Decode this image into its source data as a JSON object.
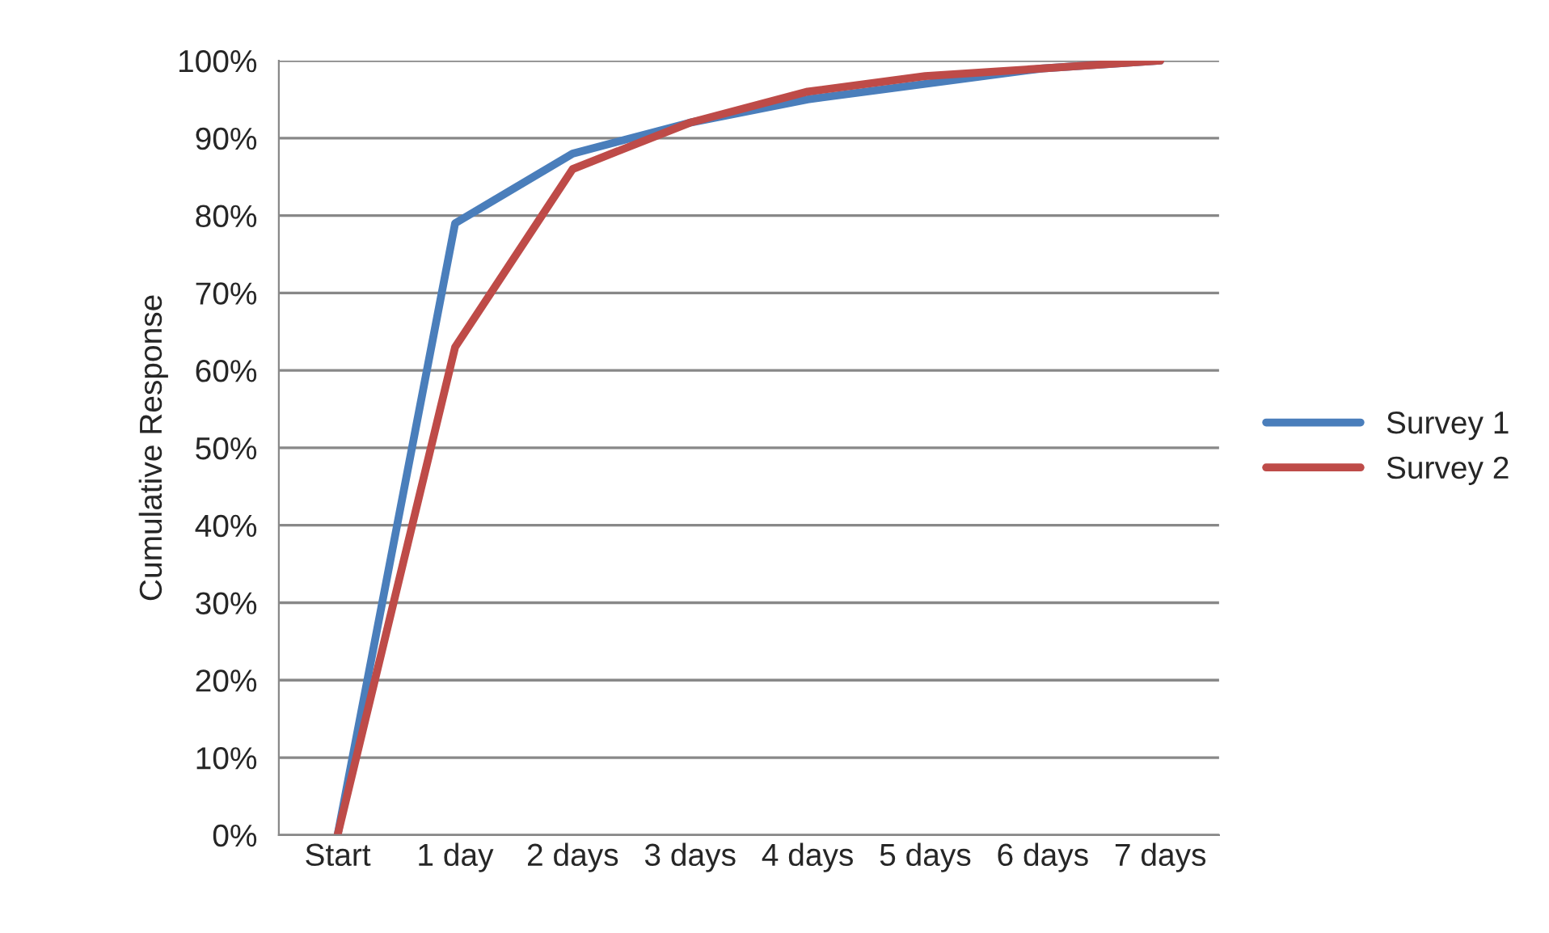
{
  "chart_data": {
    "type": "line",
    "ylabel": "Cumulative Response",
    "categories": [
      "Start",
      "1 day",
      "2 days",
      "3 days",
      "4 days",
      "5 days",
      "6 days",
      "7 days"
    ],
    "series": [
      {
        "name": "Survey 1",
        "color": "#4a7ebb",
        "values": [
          0,
          0.79,
          0.88,
          0.92,
          0.95,
          0.97,
          0.99,
          1.0
        ]
      },
      {
        "name": "Survey 2",
        "color": "#be4b48",
        "values": [
          0,
          0.63,
          0.86,
          0.92,
          0.96,
          0.98,
          0.99,
          1.0
        ]
      }
    ],
    "ylim": [
      0,
      1.0
    ],
    "yticks": [
      {
        "value": 0,
        "label": "0%"
      },
      {
        "value": 0.1,
        "label": "10%"
      },
      {
        "value": 0.2,
        "label": "20%"
      },
      {
        "value": 0.3,
        "label": "30%"
      },
      {
        "value": 0.4,
        "label": "40%"
      },
      {
        "value": 0.5,
        "label": "50%"
      },
      {
        "value": 0.6,
        "label": "60%"
      },
      {
        "value": 0.7,
        "label": "70%"
      },
      {
        "value": 0.8,
        "label": "80%"
      },
      {
        "value": 0.9,
        "label": "90%"
      },
      {
        "value": 1.0,
        "label": "100%"
      }
    ],
    "grid": "y",
    "legend": "right",
    "marker": "none",
    "line_style": "solid"
  }
}
